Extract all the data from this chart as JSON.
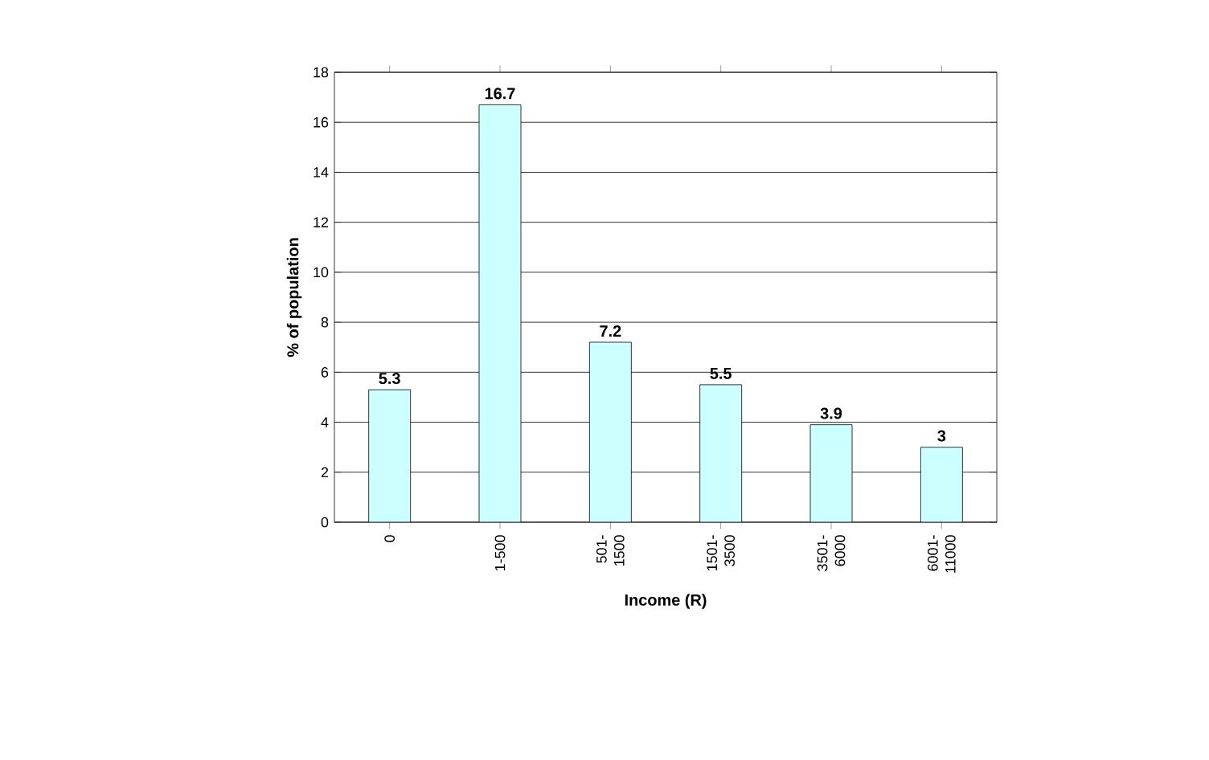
{
  "chart_data": {
    "type": "bar",
    "xlabel": "Income (R)",
    "ylabel": "% of population",
    "categories": [
      "0",
      "1-500",
      "501- 1500",
      "1501- 3500",
      "3501- 6000",
      "6001- 11000"
    ],
    "values": [
      5.3,
      16.7,
      7.2,
      5.5,
      3.9,
      3
    ],
    "color": "#ccffff",
    "ylim": [
      0,
      18
    ],
    "yticks": [
      0,
      2,
      4,
      6,
      8,
      10,
      12,
      14,
      16,
      18
    ],
    "grid": "y",
    "data_labels": true
  }
}
